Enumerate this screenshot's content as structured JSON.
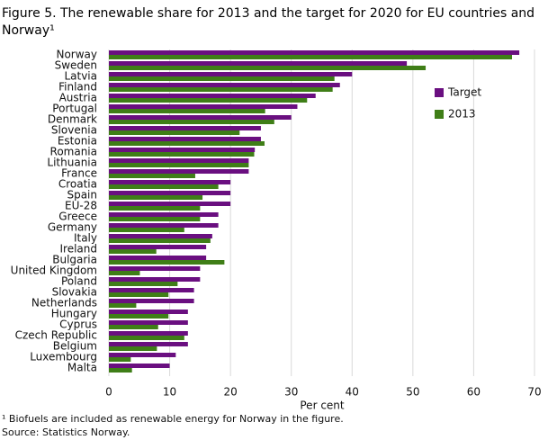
{
  "chart_data": {
    "type": "bar",
    "orientation": "horizontal",
    "title": "Figure 5. The renewable share for 2013 and the target for 2020 for EU countries and Norway¹",
    "xlabel": "Per cent",
    "footnote": "¹ Biofuels are included as renewable energy for Norway in the figure.",
    "source": "Source: Statistics Norway.",
    "categories": [
      "Norway",
      "Sweden",
      "Latvia",
      "Finland",
      "Austria",
      "Portugal",
      "Denmark",
      "Slovenia",
      "Estonia",
      "Romania",
      "Lithuania",
      "France",
      "Croatia",
      "Spain",
      "EU-28",
      "Greece",
      "Germany",
      "Italy",
      "Ireland",
      "Bulgaria",
      "United Kingdom",
      "Poland",
      "Slovakia",
      "Netherlands",
      "Hungary",
      "Cyprus",
      "Czech Republic",
      "Belgium",
      "Luxembourg",
      "Malta"
    ],
    "series": [
      {
        "name": "Target",
        "color": "#6a0f80",
        "values": [
          67.5,
          49,
          40,
          38,
          34,
          31,
          30,
          25,
          25,
          24,
          23,
          23,
          20,
          20,
          20,
          18,
          18,
          17,
          16,
          16,
          15,
          15,
          14,
          14,
          13,
          13,
          13,
          13,
          11,
          10
        ]
      },
      {
        "name": "2013",
        "color": "#3f7e17",
        "values": [
          66.3,
          52.1,
          37.1,
          36.8,
          32.6,
          25.7,
          27.2,
          21.5,
          25.6,
          23.9,
          23.0,
          14.2,
          18.0,
          15.4,
          15.0,
          15.0,
          12.4,
          16.7,
          7.8,
          19.0,
          5.1,
          11.3,
          9.8,
          4.5,
          9.8,
          8.1,
          12.4,
          7.9,
          3.6,
          3.8
        ]
      }
    ],
    "xlim": [
      0,
      70
    ],
    "xticks": [
      0,
      10,
      20,
      30,
      40,
      50,
      60,
      70
    ],
    "grid": true,
    "legend": "upper right"
  }
}
